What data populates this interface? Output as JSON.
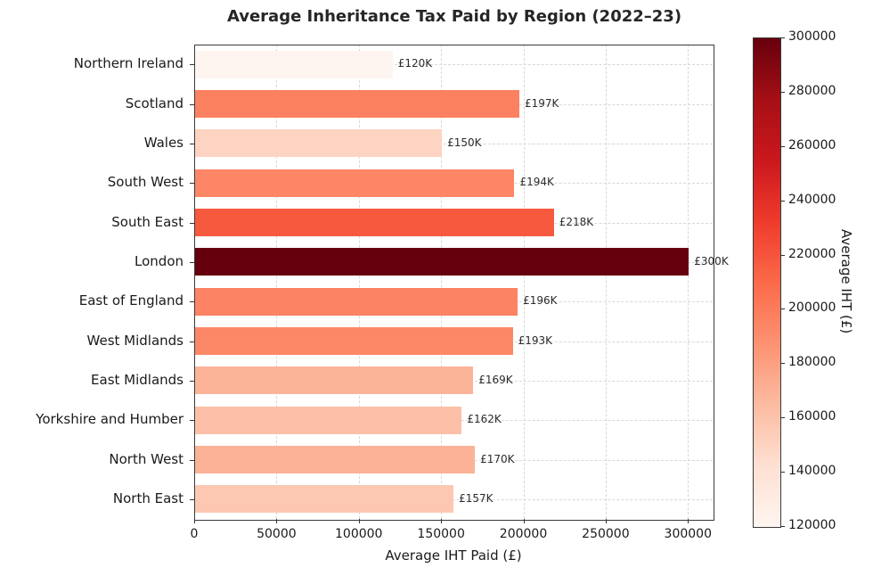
{
  "chart_data": {
    "type": "bar",
    "orientation": "horizontal",
    "title": "Average Inheritance Tax Paid by Region (2022–23)",
    "xlabel": "Average IHT Paid (£)",
    "colorbar_label": "Average IHT (£)",
    "categories_top_to_bottom": [
      "Northern Ireland",
      "Scotland",
      "Wales",
      "South West",
      "South East",
      "London",
      "East of England",
      "West Midlands",
      "East Midlands",
      "Yorkshire and Humber",
      "North West",
      "North East"
    ],
    "values": [
      120000,
      197000,
      150000,
      194000,
      218000,
      300000,
      196000,
      193000,
      169000,
      162000,
      170000,
      157000
    ],
    "bar_labels": [
      "£120K",
      "£197K",
      "£150K",
      "£194K",
      "£218K",
      "£300K",
      "£196K",
      "£193K",
      "£169K",
      "£162K",
      "£170K",
      "£157K"
    ],
    "xlim": [
      0,
      315000
    ],
    "x_ticks": [
      0,
      50000,
      100000,
      150000,
      200000,
      250000,
      300000
    ],
    "x_tick_labels": [
      "0",
      "50000",
      "100000",
      "150000",
      "200000",
      "250000",
      "300000"
    ],
    "colorbar": {
      "vmin": 120000,
      "vmax": 300000,
      "ticks": [
        120000,
        140000,
        160000,
        180000,
        200000,
        220000,
        240000,
        260000,
        280000,
        300000
      ],
      "tick_labels": [
        "120000",
        "140000",
        "160000",
        "180000",
        "200000",
        "220000",
        "240000",
        "260000",
        "280000",
        "300000"
      ]
    },
    "colormap": {
      "name": "Reds",
      "anchors": [
        "#fff5f0",
        "#fee0d2",
        "#fcbba1",
        "#fc9272",
        "#fb6a4a",
        "#ef3b2c",
        "#cb181d",
        "#a50f15",
        "#67000d"
      ]
    },
    "grid": {
      "on": true,
      "style": "dashed",
      "color": "#d8d8d8"
    },
    "legend": "none (colorbar encodes value)"
  }
}
